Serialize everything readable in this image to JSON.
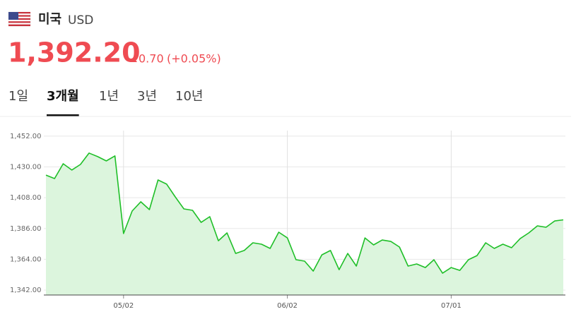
{
  "header": {
    "country": "미국",
    "currency": "USD",
    "price": "1,392.20",
    "change": "0.70",
    "change_pct": "(+0.05%)"
  },
  "tabs": {
    "items": [
      "1일",
      "3개월",
      "1년",
      "3년",
      "10년"
    ],
    "active": 1
  },
  "chart_data": {
    "type": "area",
    "color": "#1fbf28",
    "fill": "#dcf5dd",
    "grid": true,
    "categories": [
      null,
      null,
      null,
      null,
      null,
      null,
      null,
      null,
      null,
      "05/02",
      null,
      null,
      null,
      null,
      null,
      null,
      null,
      null,
      null,
      null,
      null,
      null,
      null,
      null,
      null,
      null,
      null,
      null,
      "06/02",
      null,
      null,
      null,
      null,
      null,
      null,
      null,
      null,
      null,
      null,
      null,
      null,
      null,
      null,
      null,
      null,
      null,
      null,
      "07/01",
      null,
      null,
      null,
      null,
      null,
      null,
      null,
      null,
      null,
      null,
      null,
      null,
      null
    ],
    "values": [
      1424.2,
      1421.7,
      1432.3,
      1427.8,
      1431.8,
      1439.9,
      1437.4,
      1434.3,
      1437.9,
      1382.4,
      1398.5,
      1405.1,
      1399.5,
      1420.7,
      1417.7,
      1408.6,
      1400.0,
      1399.0,
      1390.4,
      1394.5,
      1377.3,
      1382.9,
      1368.2,
      1370.3,
      1375.8,
      1374.8,
      1371.8,
      1383.4,
      1379.3,
      1363.7,
      1362.7,
      1355.6,
      1367.2,
      1370.3,
      1356.6,
      1368.2,
      1359.2,
      1379.3,
      1374.3,
      1377.8,
      1376.8,
      1372.8,
      1359.2,
      1360.7,
      1358.1,
      1363.7,
      1354.1,
      1358.1,
      1356.1,
      1363.7,
      1366.7,
      1375.8,
      1371.8,
      1374.8,
      1372.3,
      1378.8,
      1382.9,
      1387.9,
      1386.9,
      1391.4,
      1392.2
    ],
    "ylim": [
      1338.5,
      1456
    ],
    "yticks": [
      {
        "value": 1342,
        "label": "1,342.00"
      },
      {
        "value": 1364,
        "label": "1,364.00"
      },
      {
        "value": 1386,
        "label": "1,386.00"
      },
      {
        "value": 1408,
        "label": "1,408.00"
      },
      {
        "value": 1430,
        "label": "1,430.00"
      },
      {
        "value": 1452,
        "label": "1,452.00"
      }
    ]
  }
}
